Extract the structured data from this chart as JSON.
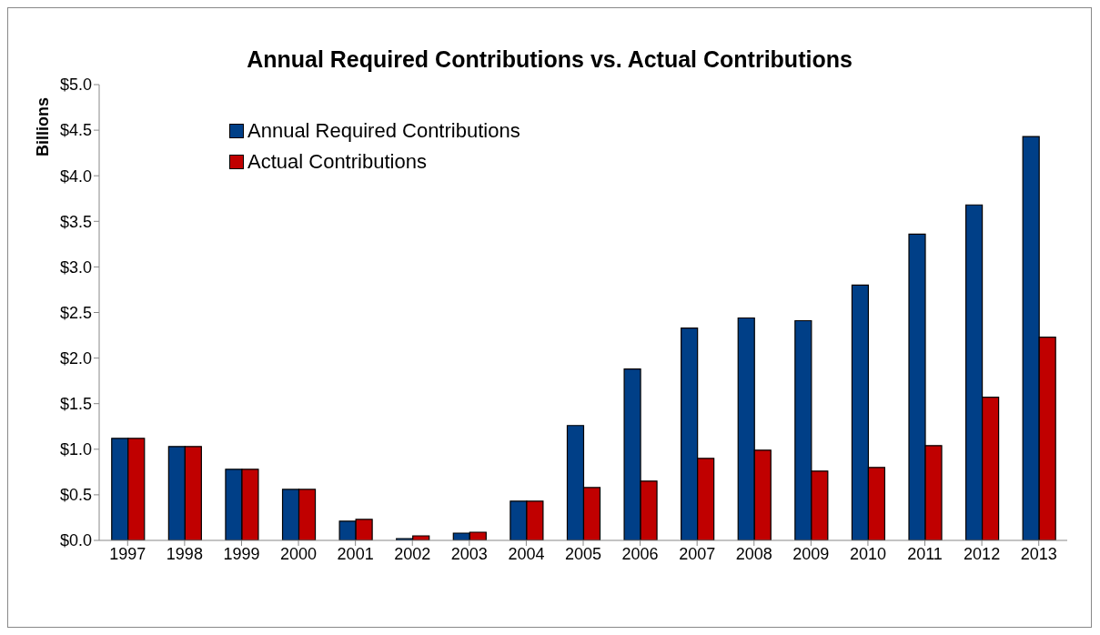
{
  "chart_data": {
    "type": "bar",
    "title": "Annual Required Contributions vs. Actual Contributions",
    "ylabel": "Billions",
    "categories": [
      "1997",
      "1998",
      "1999",
      "2000",
      "2001",
      "2002",
      "2003",
      "2004",
      "2005",
      "2006",
      "2007",
      "2008",
      "2009",
      "2010",
      "2011",
      "2012",
      "2013"
    ],
    "series": [
      {
        "name": "Annual Required Contributions",
        "color": "#003f87",
        "values": [
          1.12,
          1.03,
          0.78,
          0.56,
          0.21,
          0.02,
          0.08,
          0.43,
          1.26,
          1.88,
          2.33,
          2.44,
          2.41,
          2.8,
          3.36,
          3.68,
          4.43
        ]
      },
      {
        "name": "Actual Contributions",
        "color": "#c00000",
        "values": [
          1.12,
          1.03,
          0.78,
          0.56,
          0.23,
          0.05,
          0.09,
          0.43,
          0.58,
          0.65,
          0.9,
          0.99,
          0.76,
          0.8,
          1.04,
          1.57,
          2.23
        ]
      }
    ],
    "ylim": [
      0,
      5
    ],
    "yticks": [
      {
        "value": 0,
        "label": "$0.0"
      },
      {
        "value": 0.5,
        "label": "$0.5"
      },
      {
        "value": 1,
        "label": "$1.0"
      },
      {
        "value": 1.5,
        "label": "$1.5"
      },
      {
        "value": 2,
        "label": "$2.0"
      },
      {
        "value": 2.5,
        "label": "$2.5"
      },
      {
        "value": 3,
        "label": "$3.0"
      },
      {
        "value": 3.5,
        "label": "$3.5"
      },
      {
        "value": 4,
        "label": "$4.0"
      },
      {
        "value": 4.5,
        "label": "$4.5"
      },
      {
        "value": 5,
        "label": "$5.0"
      }
    ],
    "grid": false,
    "legend": "top left"
  }
}
